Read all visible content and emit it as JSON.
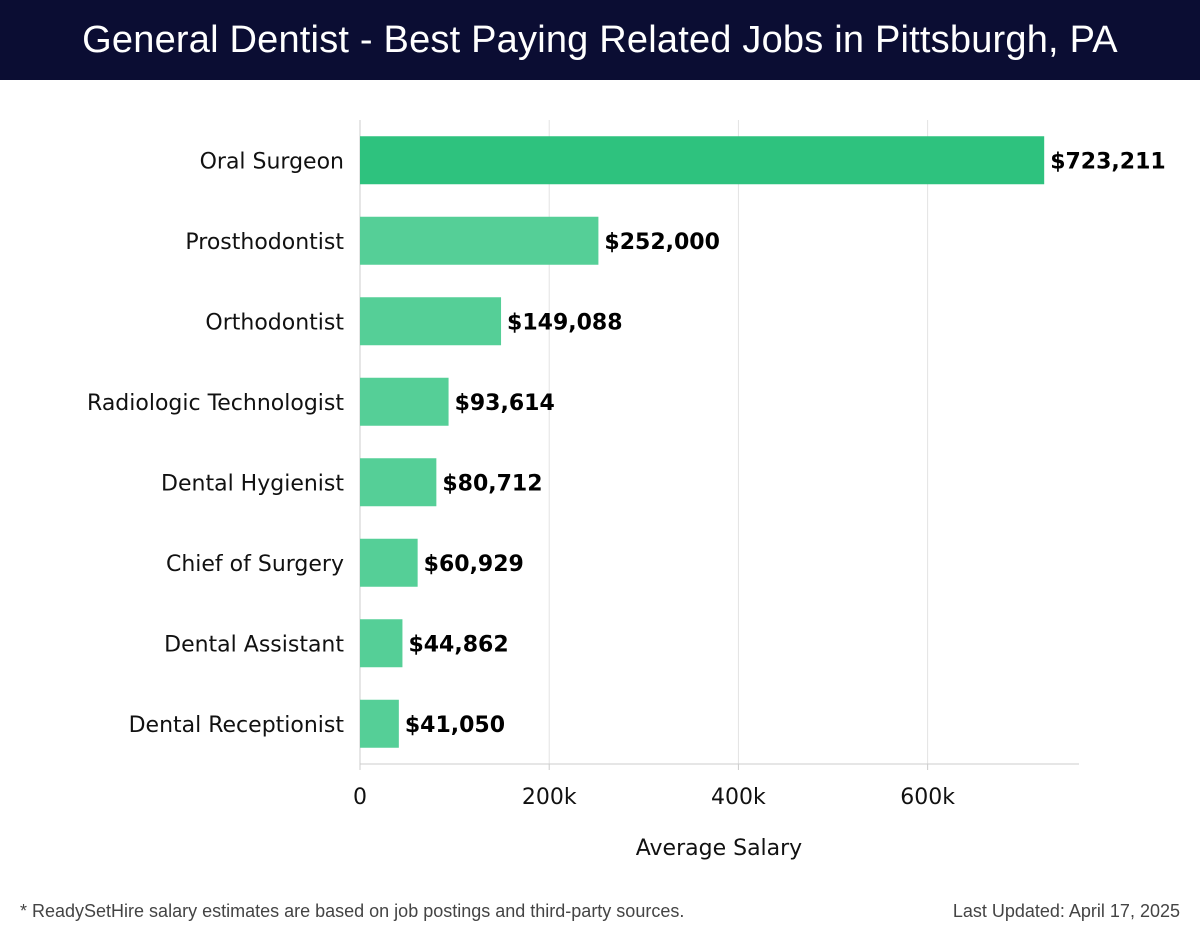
{
  "header": {
    "title": "General Dentist - Best Paying Related Jobs in Pittsburgh, PA"
  },
  "footer": {
    "note": "* ReadySetHire salary estimates are based on job postings and third-party sources.",
    "updated": "Last Updated: April 17, 2025"
  },
  "colors": {
    "top_bar": "#2ec27e",
    "bar": "#55cf97",
    "grid": "#e3e3e3",
    "axis": "#cccccc"
  },
  "chart_data": {
    "type": "bar",
    "orientation": "horizontal",
    "title": "General Dentist - Best Paying Related Jobs in Pittsburgh, PA",
    "xlabel": "Average Salary",
    "ylabel": "",
    "xlim": [
      0,
      760000
    ],
    "grid": true,
    "categories": [
      "Oral Surgeon",
      "Prosthodontist",
      "Orthodontist",
      "Radiologic Technologist",
      "Dental Hygienist",
      "Chief of Surgery",
      "Dental Assistant",
      "Dental Receptionist"
    ],
    "values": [
      723211,
      252000,
      149088,
      93614,
      80712,
      60929,
      44862,
      41050
    ],
    "value_labels": [
      "$723,211",
      "$252,000",
      "$149,088",
      "$93,614",
      "$80,712",
      "$60,929",
      "$44,862",
      "$41,050"
    ],
    "ticks": [
      0,
      200000,
      400000,
      600000
    ],
    "tick_labels": [
      "0",
      "200k",
      "400k",
      "600k"
    ]
  }
}
